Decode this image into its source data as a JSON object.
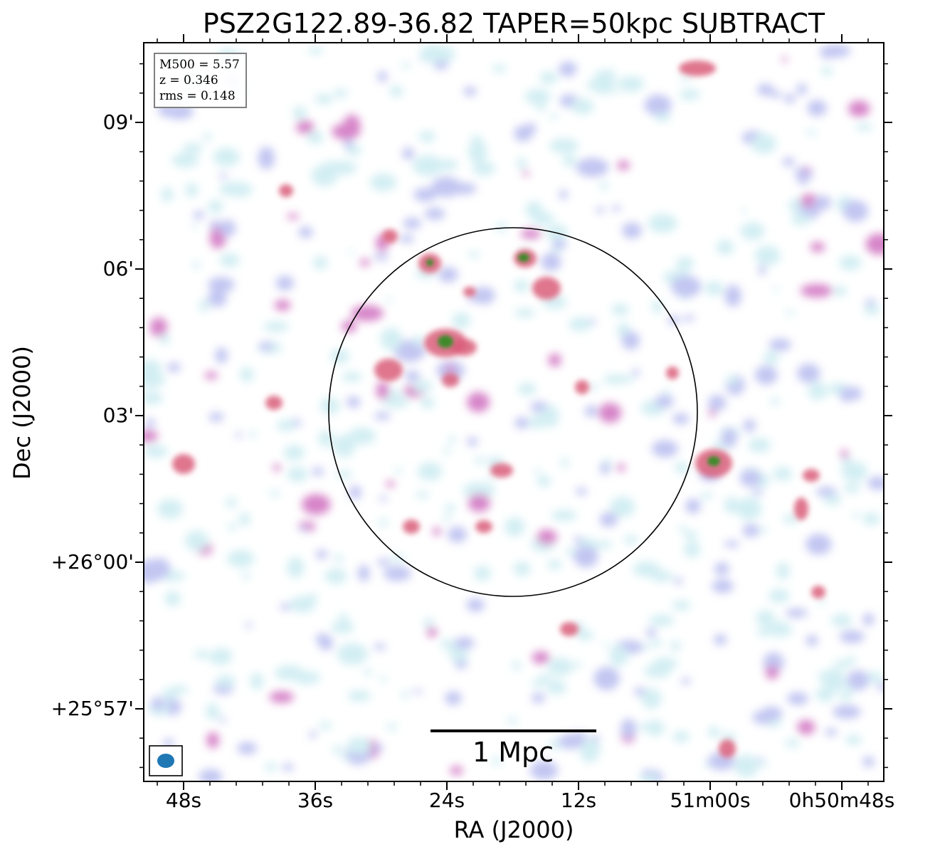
{
  "title": "PSZ2G122.89-36.82 TAPER=50kpc SUBTRACT",
  "axes": {
    "xlabel": "RA (J2000)",
    "ylabel": "Dec (J2000)",
    "x_ticks": [
      "48s",
      "36s",
      "24s",
      "12s",
      "51m00s",
      "0h50m48s"
    ],
    "y_ticks": [
      "09'",
      "06'",
      "03'",
      "+26°00'",
      "+25°57'"
    ]
  },
  "info": {
    "mass": "M500 = 5.57",
    "redshift": "z = 0.346",
    "rms": "rms = 0.148"
  },
  "scale_bar": {
    "label": "1 Mpc"
  },
  "colors": {
    "noise_low": "#c8eaf0",
    "noise_mid": "#b3b8ee",
    "emission_mid": "#cc66bb",
    "emission_high": "#d95d7a",
    "peak": "#3e8a2c",
    "beam": "#1f77b4",
    "circle": "#000000"
  },
  "icons": {
    "beam": "beam-ellipse-icon"
  }
}
